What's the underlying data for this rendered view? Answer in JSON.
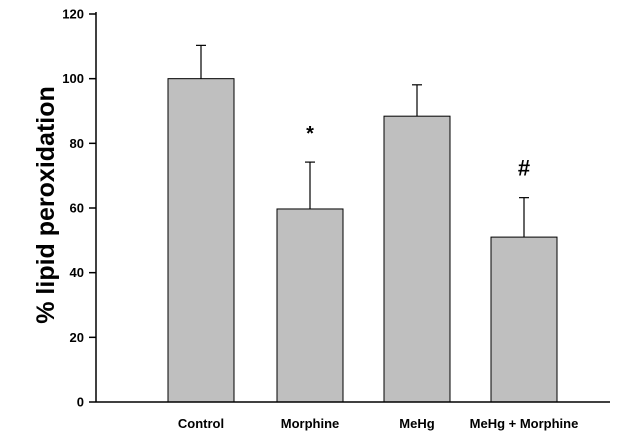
{
  "chart_data": {
    "type": "bar",
    "title": "",
    "xlabel": "",
    "ylabel": "% lipid peroxidation",
    "ylim": [
      0,
      120
    ],
    "yticks": [
      "0",
      "20",
      "40",
      "60",
      "80",
      "100",
      "120"
    ],
    "categories": [
      "Control",
      "Morphine",
      "MeHg",
      "MeHg + Morphine"
    ],
    "values": [
      100,
      59.7,
      88.4,
      51
    ],
    "error_upper": [
      110.3,
      74.2,
      98.1,
      63.2
    ],
    "annotations": [
      "",
      "*",
      "",
      "#"
    ],
    "grid": false,
    "legend": "none",
    "colors": {
      "bar_fill": "#bfbfbf",
      "bar_stroke": "#000000",
      "axis": "#000000"
    }
  }
}
